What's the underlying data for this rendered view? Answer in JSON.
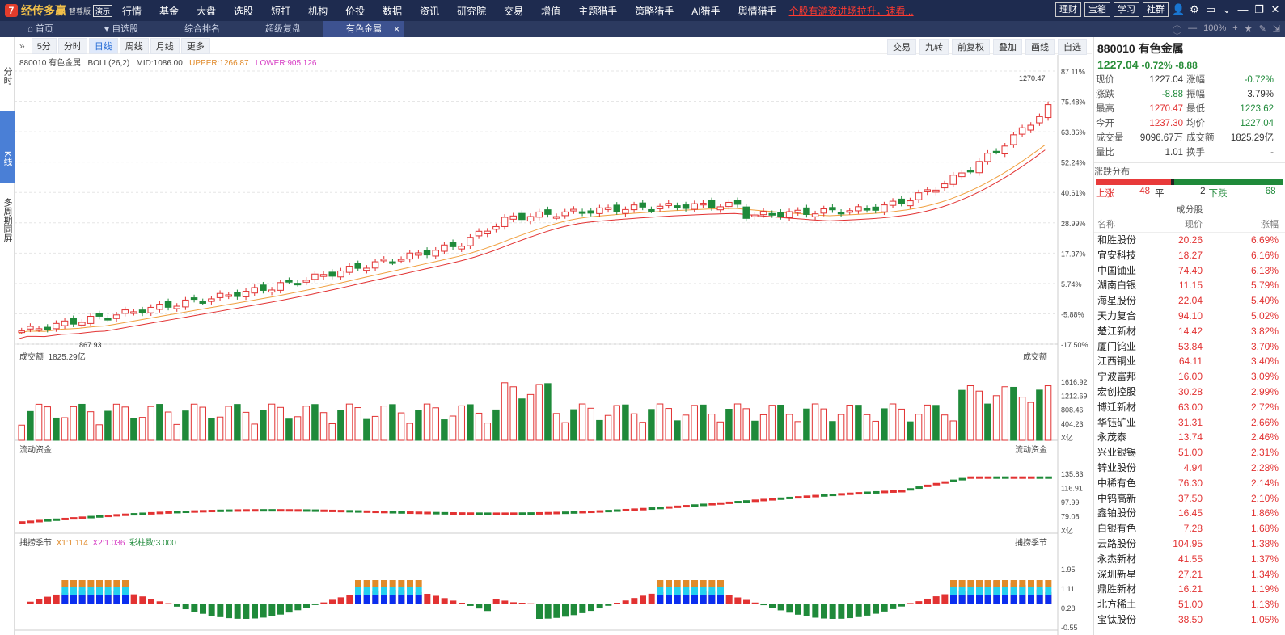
{
  "app": {
    "logo_text": "经传多赢",
    "edition": "智尊版",
    "demo_badge": "演示",
    "nav": [
      "行情",
      "基金",
      "大盘",
      "选股",
      "短打",
      "机构",
      "价投",
      "数据",
      "资讯",
      "研究院",
      "交易",
      "增值",
      "主题猎手",
      "策略猎手",
      "AI猎手",
      "舆情猎手"
    ],
    "promo": "个股有游资进场拉升，速看...",
    "top_buttons": [
      "理财",
      "宝箱",
      "学习",
      "社群"
    ]
  },
  "tabs": [
    {
      "label": "首页",
      "icon": "home-icon"
    },
    {
      "label": "自选股",
      "icon": "heart-icon"
    },
    {
      "label": "综合排名",
      "icon": ""
    },
    {
      "label": "超级复盘",
      "icon": ""
    },
    {
      "label": "有色金属",
      "icon": "",
      "active": true
    }
  ],
  "zoom": "100%",
  "left_nav": [
    "分时",
    "K线",
    "多周期同屏"
  ],
  "chart_toolbar": {
    "periods": [
      "5分",
      "分时",
      "日线",
      "周线",
      "月线",
      "更多"
    ],
    "active_period": "日线",
    "right_tools": [
      "交易",
      "九转",
      "前复权",
      "叠加",
      "画线",
      "自选"
    ]
  },
  "indicator_line": {
    "code_name": "880010 有色金属",
    "boll": "BOLL(26,2)",
    "mid": "MID:1086.00",
    "upper": "UPPER:1266.87",
    "lower": "LOWER:905.126"
  },
  "price_axis": [
    "87.11%",
    "75.48%",
    "63.86%",
    "52.24%",
    "40.61%",
    "28.99%",
    "17.37%",
    "5.74%",
    "-5.88%",
    "-17.50%"
  ],
  "annotations": {
    "high": "1270.47",
    "low": "867.93"
  },
  "volume_panel": {
    "title": "成交额",
    "value": "1825.29亿",
    "right_title": "成交额",
    "axis": [
      "1616.92",
      "1212.69",
      "808.46",
      "404.23",
      "X亿"
    ]
  },
  "flow_panel": {
    "title": "流动资金",
    "right_title": "流动资金",
    "axis": [
      "135.83",
      "116.91",
      "97.99",
      "79.08",
      "X亿"
    ]
  },
  "season_panel": {
    "title": "捕捞季节",
    "x1": "X1:1.114",
    "x2": "X2:1.036",
    "bar": "彩柱数:3.000",
    "right_title": "捕捞季节",
    "axis": [
      "1.95",
      "1.11",
      "0.28",
      "-0.55"
    ]
  },
  "quote": {
    "title": "880010 有色金属",
    "price": "1227.04",
    "change_pct": "-0.72%",
    "change": "-8.88",
    "rows": [
      [
        "现价",
        "1227.04",
        "涨幅",
        "-0.72%"
      ],
      [
        "涨跌",
        "-8.88",
        "振幅",
        "3.79%"
      ],
      [
        "最高",
        "1270.47",
        "最低",
        "1223.62"
      ],
      [
        "今开",
        "1237.30",
        "均价",
        "1227.04"
      ],
      [
        "成交量",
        "9096.67万",
        "成交额",
        "1825.29亿"
      ],
      [
        "量比",
        "1.01",
        "换手",
        "-"
      ]
    ],
    "dist_title": "涨跌分布",
    "up_label": "上涨",
    "up": "48",
    "flat_label": "平",
    "flat": "2",
    "down_label": "下跌",
    "down": "68",
    "comp_title": "成分股",
    "comp_headers": [
      "名称",
      "现价",
      "涨幅"
    ],
    "components": [
      [
        "和胜股份",
        "20.26",
        "6.69%"
      ],
      [
        "宜安科技",
        "18.27",
        "6.16%"
      ],
      [
        "中国铀业",
        "74.40",
        "6.13%"
      ],
      [
        "湖南白银",
        "11.15",
        "5.79%"
      ],
      [
        "海星股份",
        "22.04",
        "5.40%"
      ],
      [
        "天力复合",
        "94.10",
        "5.02%"
      ],
      [
        "楚江新材",
        "14.42",
        "3.82%"
      ],
      [
        "厦门钨业",
        "53.84",
        "3.70%"
      ],
      [
        "江西铜业",
        "64.11",
        "3.40%"
      ],
      [
        "宁波富邦",
        "16.00",
        "3.09%"
      ],
      [
        "宏创控股",
        "30.28",
        "2.99%"
      ],
      [
        "博迁新材",
        "63.00",
        "2.72%"
      ],
      [
        "华钰矿业",
        "31.31",
        "2.66%"
      ],
      [
        "永茂泰",
        "13.74",
        "2.46%"
      ],
      [
        "兴业银锡",
        "51.00",
        "2.31%"
      ],
      [
        "锌业股份",
        "4.94",
        "2.28%"
      ],
      [
        "中稀有色",
        "76.30",
        "2.14%"
      ],
      [
        "中钨高新",
        "37.50",
        "2.10%"
      ],
      [
        "鑫铂股份",
        "16.45",
        "1.86%"
      ],
      [
        "白银有色",
        "7.28",
        "1.68%"
      ],
      [
        "云路股份",
        "104.95",
        "1.38%"
      ],
      [
        "永杰新材",
        "41.55",
        "1.37%"
      ],
      [
        "深圳新星",
        "27.21",
        "1.34%"
      ],
      [
        "鼎胜新材",
        "16.21",
        "1.19%"
      ],
      [
        "北方稀土",
        "51.00",
        "1.13%"
      ],
      [
        "宝钛股份",
        "38.50",
        "1.05%"
      ]
    ]
  },
  "colors": {
    "up": "#e23232",
    "down": "#1f8a3a",
    "nav_bg": "#1e2b4f",
    "accent": "#4a7fd6"
  }
}
